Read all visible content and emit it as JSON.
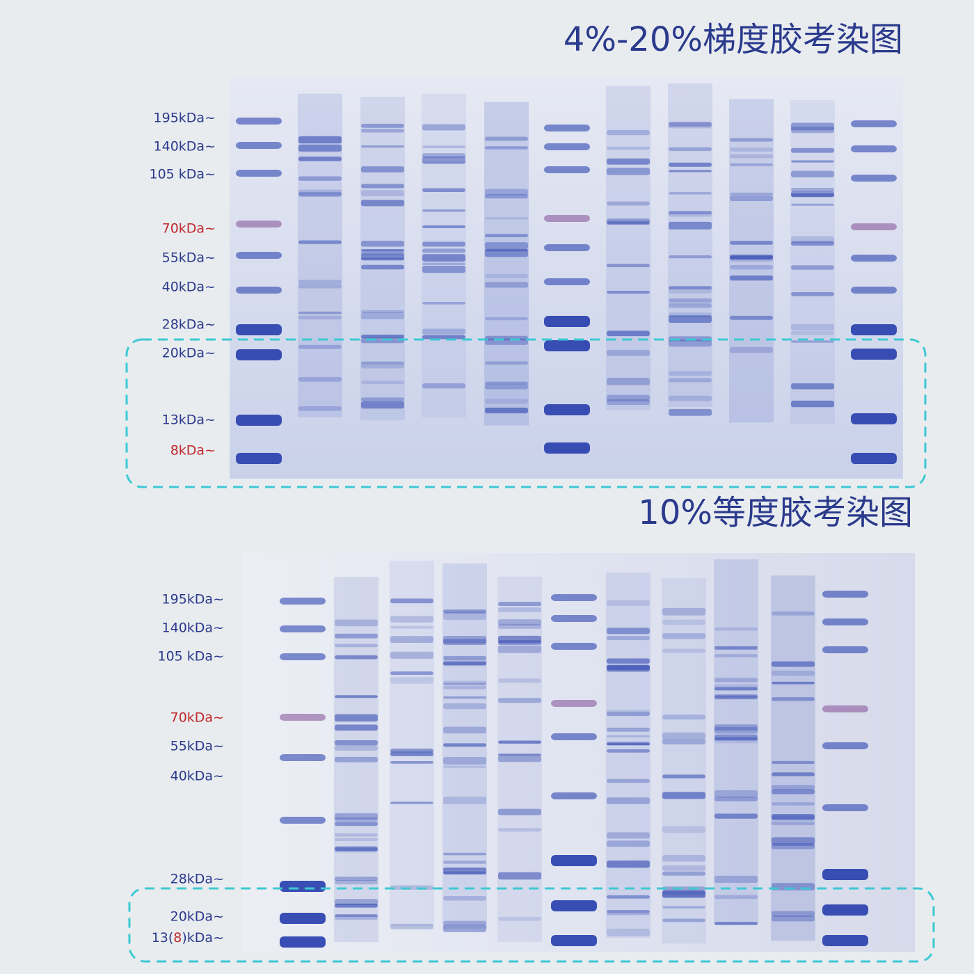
{
  "gels": [
    {
      "title": "4%-20%梯度胶考染图",
      "markers": [
        {
          "label": "195kDa~",
          "color": "#2a3a8c"
        },
        {
          "label": "140kDa~",
          "color": "#2a3a8c"
        },
        {
          "label": "105 kDa~",
          "color": "#2a3a8c"
        },
        {
          "label": "70kDa~",
          "color": "#c0282d"
        },
        {
          "label": "55kDa~",
          "color": "#2a3a8c"
        },
        {
          "label": "40kDa~",
          "color": "#2a3a8c"
        },
        {
          "label": "28kDa~",
          "color": "#2a3a8c"
        },
        {
          "label": "20kDa~",
          "color": "#2a3a8c"
        },
        {
          "label": "13kDa~",
          "color": "#2a3a8c"
        },
        {
          "label": "8kDa~",
          "color": "#c0282d"
        }
      ]
    },
    {
      "title": "10%等度胶考染图",
      "markers": [
        {
          "label": "195kDa~",
          "color": "#2a3a8c"
        },
        {
          "label": "140kDa~",
          "color": "#2a3a8c"
        },
        {
          "label": "105 kDa~",
          "color": "#2a3a8c"
        },
        {
          "label": "70kDa~",
          "color": "#c0282d"
        },
        {
          "label": "55kDa~",
          "color": "#2a3a8c"
        },
        {
          "label": "40kDa~",
          "color": "#2a3a8c"
        },
        {
          "label": "28kDa~",
          "color": "#2a3a8c"
        },
        {
          "label": "20kDa~",
          "color": "#2a3a8c"
        },
        {
          "label": [
            "13(",
            "8",
            ")kDa~"
          ],
          "color": [
            "#2a3a8c",
            "#c0282d",
            "#2a3a8c"
          ]
        }
      ]
    }
  ]
}
